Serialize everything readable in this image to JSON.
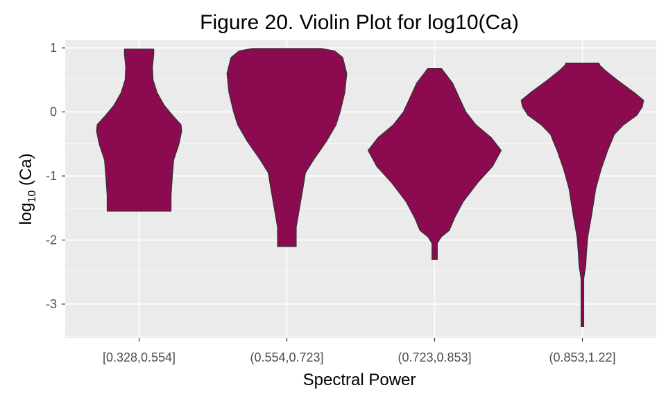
{
  "chart_data": {
    "type": "violin",
    "title": "Figure 20. Violin Plot for log10(Ca)",
    "xlabel": "Spectral Power",
    "ylabel": {
      "base": "log",
      "subscript": "10",
      "rest": " (Ca)"
    },
    "categories": [
      "[0.328,0.554]",
      "(0.554,0.723]",
      "(0.723,0.853]",
      "(0.853,1.22]"
    ],
    "y_ticks": [
      1,
      0,
      -1,
      -2,
      -3
    ],
    "y_tick_labels": [
      "1",
      "0",
      "-1",
      "-2",
      "-3"
    ],
    "ylim": [
      -3.53,
      1.12
    ],
    "fill_color": "#8B0A50",
    "outline_color": "#333333",
    "panel_color": "#EBEBEB",
    "grid": true,
    "legend": "none",
    "violins": [
      {
        "category": "[0.328,0.554]",
        "min": -1.55,
        "max": 0.98,
        "profile": [
          [
            -1.55,
            0.48
          ],
          [
            -1.3,
            0.48
          ],
          [
            -1.0,
            0.5
          ],
          [
            -0.75,
            0.52
          ],
          [
            -0.5,
            0.6
          ],
          [
            -0.3,
            0.64
          ],
          [
            -0.2,
            0.63
          ],
          [
            -0.05,
            0.5
          ],
          [
            0.1,
            0.38
          ],
          [
            0.3,
            0.27
          ],
          [
            0.5,
            0.21
          ],
          [
            0.7,
            0.2
          ],
          [
            0.9,
            0.22
          ],
          [
            0.98,
            0.22
          ]
        ]
      },
      {
        "category": "(0.554,0.723]",
        "min": -2.1,
        "max": 0.99,
        "profile": [
          [
            -2.1,
            0.14
          ],
          [
            -1.8,
            0.14
          ],
          [
            -1.5,
            0.19
          ],
          [
            -1.2,
            0.24
          ],
          [
            -0.95,
            0.28
          ],
          [
            -0.75,
            0.4
          ],
          [
            -0.45,
            0.6
          ],
          [
            -0.2,
            0.74
          ],
          [
            0.0,
            0.8
          ],
          [
            0.3,
            0.87
          ],
          [
            0.6,
            0.9
          ],
          [
            0.85,
            0.84
          ],
          [
            0.95,
            0.72
          ],
          [
            0.99,
            0.52
          ]
        ]
      },
      {
        "category": "(0.723,0.853]",
        "min": -2.3,
        "max": 0.68,
        "profile": [
          [
            -2.3,
            0.04
          ],
          [
            -2.05,
            0.04
          ],
          [
            -1.95,
            0.1
          ],
          [
            -1.85,
            0.22
          ],
          [
            -1.65,
            0.3
          ],
          [
            -1.4,
            0.43
          ],
          [
            -1.1,
            0.65
          ],
          [
            -0.85,
            0.87
          ],
          [
            -0.6,
            1.0
          ],
          [
            -0.4,
            0.85
          ],
          [
            -0.2,
            0.62
          ],
          [
            0.0,
            0.47
          ],
          [
            0.2,
            0.38
          ],
          [
            0.45,
            0.27
          ],
          [
            0.6,
            0.16
          ],
          [
            0.68,
            0.1
          ]
        ]
      },
      {
        "category": "(0.853,1.22]",
        "min": -3.35,
        "max": 0.76,
        "profile": [
          [
            -3.35,
            0.02
          ],
          [
            -2.6,
            0.02
          ],
          [
            -2.4,
            0.05
          ],
          [
            -2.2,
            0.06
          ],
          [
            -1.95,
            0.08
          ],
          [
            -1.6,
            0.14
          ],
          [
            -1.2,
            0.2
          ],
          [
            -0.9,
            0.28
          ],
          [
            -0.6,
            0.38
          ],
          [
            -0.45,
            0.44
          ],
          [
            -0.35,
            0.48
          ],
          [
            -0.2,
            0.62
          ],
          [
            -0.05,
            0.82
          ],
          [
            0.08,
            0.9
          ],
          [
            0.18,
            0.92
          ],
          [
            0.3,
            0.78
          ],
          [
            0.5,
            0.52
          ],
          [
            0.65,
            0.34
          ],
          [
            0.73,
            0.26
          ],
          [
            0.76,
            0.25
          ]
        ]
      }
    ]
  }
}
